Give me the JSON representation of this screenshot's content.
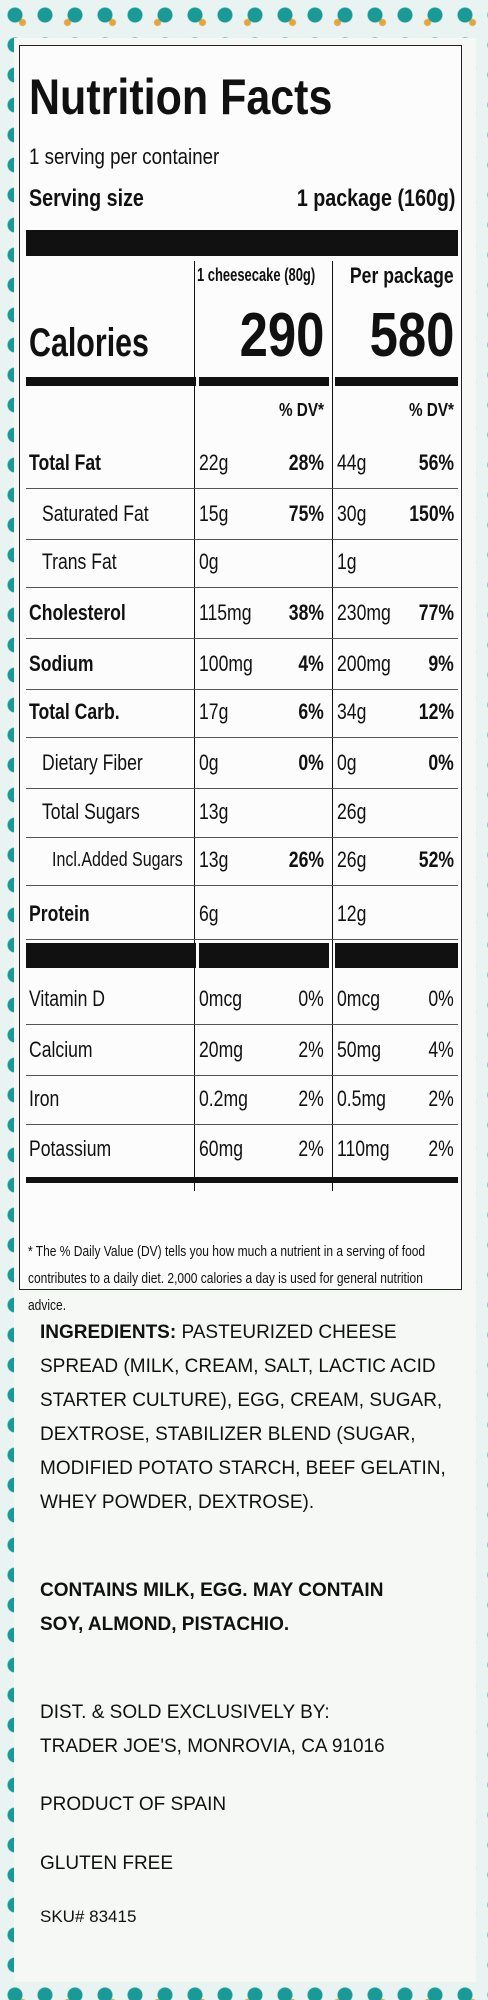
{
  "header": {
    "title": "Nutrition Facts",
    "servings": "1 serving per container",
    "serving_size_label": "Serving size",
    "serving_size_value": "1 package (160g)"
  },
  "columns": {
    "col1": "1 cheesecake (80g)",
    "col2": "Per package"
  },
  "calories": {
    "label": "Calories",
    "col1": "290",
    "col2": "580"
  },
  "dv_header": {
    "col1": "% DV*",
    "col2": "% DV*"
  },
  "nutrients": [
    {
      "name": "Total Fat",
      "a1": "22g",
      "d1": "28%",
      "a2": "44g",
      "d2": "56%"
    },
    {
      "name": "Saturated Fat",
      "a1": "15g",
      "d1": "75%",
      "a2": "30g",
      "d2": "150%"
    },
    {
      "name": "Trans Fat",
      "a1": "0g",
      "a2": "1g"
    },
    {
      "name": "Cholesterol",
      "a1": "115mg",
      "d1": "38%",
      "a2": "230mg",
      "d2": "77%"
    },
    {
      "name": "Sodium",
      "a1": "100mg",
      "d1": "4%",
      "a2": "200mg",
      "d2": "9%"
    },
    {
      "name": "Total Carb.",
      "a1": "17g",
      "d1": "6%",
      "a2": "34g",
      "d2": "12%"
    },
    {
      "name": "Dietary Fiber",
      "a1": "0g",
      "d1": "0%",
      "a2": "0g",
      "d2": "0%"
    },
    {
      "name": "Total Sugars",
      "a1": "13g",
      "a2": "26g"
    },
    {
      "name": "Incl.Added Sugars",
      "a1": "13g",
      "d1": "26%",
      "a2": "26g",
      "d2": "52%"
    },
    {
      "name": "Protein",
      "a1": "6g",
      "a2": "12g"
    }
  ],
  "vitamins": [
    {
      "name": "Vitamin D",
      "a1": "0mcg",
      "d1": "0%",
      "a2": "0mcg",
      "d2": "0%"
    },
    {
      "name": "Calcium",
      "a1": "20mg",
      "d1": "2%",
      "a2": "50mg",
      "d2": "4%"
    },
    {
      "name": "Iron",
      "a1": "0.2mg",
      "d1": "2%",
      "a2": "0.5mg",
      "d2": "2%"
    },
    {
      "name": "Potassium",
      "a1": "60mg",
      "d1": "2%",
      "a2": "110mg",
      "d2": "2%"
    }
  ],
  "footnote": "* The % Daily Value (DV) tells you how much a nutrient in a serving of food contributes to a daily diet. 2,000 calories a day is used for general nutrition advice.",
  "ingredients": {
    "label": "INGREDIENTS:",
    "text": "PASTEURIZED CHEESE SPREAD (MILK, CREAM, SALT, LACTIC ACID STARTER CULTURE), EGG, CREAM, SUGAR, DEXTROSE, STABILIZER BLEND (SUGAR, MODIFIED POTATO STARCH, BEEF GELATIN, WHEY POWDER, DEXTROSE)."
  },
  "allergens": "CONTAINS MILK, EGG. MAY CONTAIN SOY, ALMOND, PISTACHIO.",
  "distributor": [
    "DIST. & SOLD EXCLUSIVELY BY:",
    "TRADER JOE'S, MONROVIA, CA 91016"
  ],
  "origin": "PRODUCT OF SPAIN",
  "gluten": "GLUTEN FREE",
  "sku": "SKU# 83415"
}
